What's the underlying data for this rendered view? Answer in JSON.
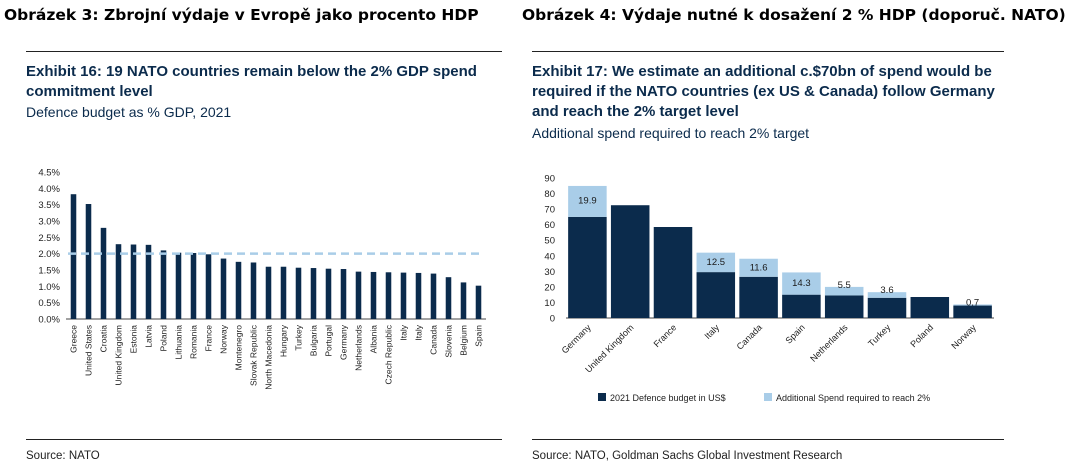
{
  "captions": {
    "left": "Obrázek 3: Zbrojní výdaje v Evropě jako procento HDP",
    "right": "Obrázek 4: Výdaje nutné k dosažení 2 % HDP (doporuč. NATO)"
  },
  "left_panel": {
    "title": "Exhibit 16: 19 NATO countries remain below the 2% GDP spend commitment level",
    "subtitle": "Defence budget as % GDP, 2021",
    "source": "Source: NATO"
  },
  "right_panel": {
    "title": "Exhibit 17: We estimate an additional c.$70bn of spend would be required if the NATO countries (ex US & Canada) follow Germany and reach the 2% target level",
    "subtitle": "Additional spend required to reach 2% target",
    "source": "Source: NATO, Goldman Sachs Global Investment Research"
  },
  "chart_data": [
    {
      "type": "bar",
      "title": "Exhibit 16: 19 NATO countries remain below the 2% GDP spend commitment level",
      "subtitle": "Defence budget as % GDP, 2021",
      "categories": [
        "Greece",
        "United States",
        "Croatia",
        "United Kingdom",
        "Estonia",
        "Latvia",
        "Poland",
        "Lithuania",
        "Romania",
        "France",
        "Norway",
        "Montenegro",
        "Slovak Republic",
        "North Macedonia",
        "Hungary",
        "Turkey",
        "Bulgaria",
        "Portugal",
        "Germany",
        "Netherlands",
        "Albania",
        "Czech Republic",
        "Italy",
        "Italy",
        "Canada",
        "Slovenia",
        "Belgium",
        "Spain"
      ],
      "values": [
        3.82,
        3.52,
        2.79,
        2.29,
        2.28,
        2.27,
        2.1,
        2.03,
        2.02,
        1.98,
        1.85,
        1.75,
        1.73,
        1.6,
        1.6,
        1.57,
        1.56,
        1.54,
        1.53,
        1.45,
        1.44,
        1.43,
        1.42,
        1.41,
        1.39,
        1.28,
        1.12,
        1.02
      ],
      "ylim": [
        0,
        4.5
      ],
      "yticks": [
        "0.0%",
        "0.5%",
        "1.0%",
        "1.5%",
        "2.0%",
        "2.5%",
        "3.0%",
        "3.5%",
        "4.0%",
        "4.5%"
      ],
      "reference_line": 2.0,
      "colors": {
        "bar": "#0b2b4c",
        "reference": "#a9cde8"
      },
      "grid": false
    },
    {
      "type": "bar",
      "stacked": true,
      "title": "Exhibit 17: We estimate an additional c.$70bn of spend would be required if the NATO countries (ex US & Canada) follow Germany and reach the 2% target level",
      "subtitle": "Additional spend required to reach 2% target",
      "categories": [
        "Germany",
        "United Kingdom",
        "France",
        "Italy",
        "Canada",
        "Spain",
        "Netherlands",
        "Turkey",
        "Poland",
        "Norway"
      ],
      "series": [
        {
          "name": "2021 Defence budget in US$",
          "values": [
            65,
            72.5,
            58.5,
            29.5,
            26.5,
            15,
            14.5,
            13,
            13.5,
            8
          ],
          "color": "#0b2b4c"
        },
        {
          "name": "Additional Spend required to reach 2%",
          "values": [
            19.9,
            0,
            0,
            12.5,
            11.6,
            14.3,
            5.5,
            3.6,
            0,
            0.7
          ],
          "color": "#a9cde8"
        }
      ],
      "data_labels": [
        "19.9",
        "",
        "",
        "12.5",
        "11.6",
        "14.3",
        "5.5",
        "3.6",
        "",
        "0.7"
      ],
      "ylim": [
        0,
        90
      ],
      "yticks": [
        "0",
        "10",
        "20",
        "30",
        "40",
        "50",
        "60",
        "70",
        "80",
        "90"
      ],
      "legend": "bottom",
      "grid": false
    }
  ]
}
